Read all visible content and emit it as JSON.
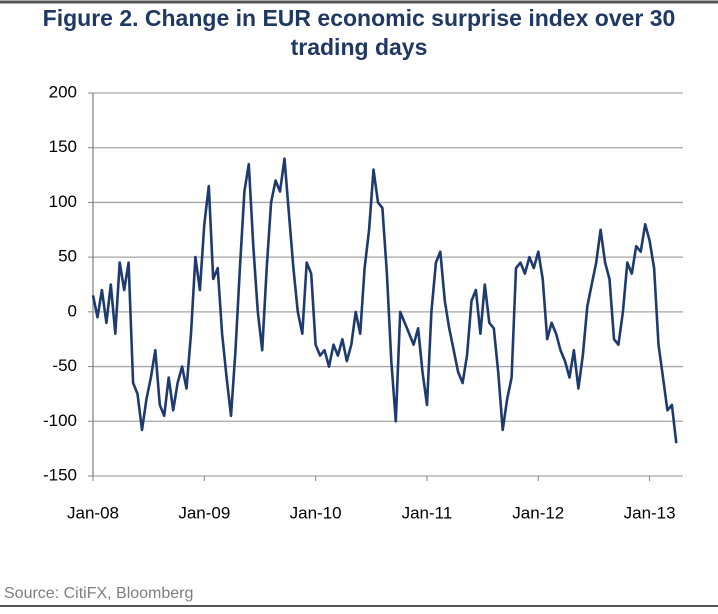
{
  "chart_data": {
    "type": "line",
    "title": "Figure 2. Change in EUR economic surprise index over 30 trading days",
    "source": "Source: CitiFX, Bloomberg",
    "x": [
      2008.0,
      2008.04,
      2008.08,
      2008.12,
      2008.16,
      2008.2,
      2008.24,
      2008.28,
      2008.32,
      2008.36,
      2008.4,
      2008.44,
      2008.48,
      2008.52,
      2008.56,
      2008.6,
      2008.64,
      2008.68,
      2008.72,
      2008.76,
      2008.8,
      2008.84,
      2008.88,
      2008.92,
      2008.96,
      2009.0,
      2009.04,
      2009.08,
      2009.12,
      2009.16,
      2009.2,
      2009.24,
      2009.28,
      2009.32,
      2009.36,
      2009.4,
      2009.44,
      2009.48,
      2009.52,
      2009.56,
      2009.6,
      2009.64,
      2009.68,
      2009.72,
      2009.76,
      2009.8,
      2009.84,
      2009.88,
      2009.92,
      2009.96,
      2010.0,
      2010.04,
      2010.08,
      2010.12,
      2010.16,
      2010.2,
      2010.24,
      2010.28,
      2010.32,
      2010.36,
      2010.4,
      2010.44,
      2010.48,
      2010.52,
      2010.56,
      2010.6,
      2010.64,
      2010.68,
      2010.72,
      2010.76,
      2010.8,
      2010.84,
      2010.88,
      2010.92,
      2010.96,
      2011.0,
      2011.04,
      2011.08,
      2011.12,
      2011.16,
      2011.2,
      2011.24,
      2011.28,
      2011.32,
      2011.36,
      2011.4,
      2011.44,
      2011.48,
      2011.52,
      2011.56,
      2011.6,
      2011.64,
      2011.68,
      2011.72,
      2011.76,
      2011.8,
      2011.84,
      2011.88,
      2011.92,
      2011.96,
      2012.0,
      2012.04,
      2012.08,
      2012.12,
      2012.16,
      2012.2,
      2012.24,
      2012.28,
      2012.32,
      2012.36,
      2012.4,
      2012.44,
      2012.48,
      2012.52,
      2012.56,
      2012.6,
      2012.64,
      2012.68,
      2012.72,
      2012.76,
      2012.8,
      2012.84,
      2012.88,
      2012.92,
      2012.96,
      2013.0,
      2013.04,
      2013.08,
      2013.12,
      2013.16,
      2013.2,
      2013.24
    ],
    "series": [
      {
        "color": "#1f3a6e",
        "values": [
          15,
          -5,
          20,
          -10,
          25,
          -20,
          45,
          20,
          45,
          -65,
          -75,
          -108,
          -80,
          -60,
          -35,
          -85,
          -95,
          -60,
          -90,
          -65,
          -50,
          -70,
          -20,
          50,
          20,
          80,
          115,
          30,
          40,
          -20,
          -60,
          -95,
          -35,
          40,
          110,
          135,
          60,
          0,
          -35,
          40,
          100,
          120,
          110,
          140,
          90,
          40,
          0,
          -20,
          45,
          35,
          -30,
          -40,
          -35,
          -50,
          -30,
          -40,
          -25,
          -45,
          -30,
          0,
          -20,
          40,
          75,
          130,
          100,
          95,
          35,
          -45,
          -100,
          0,
          -10,
          -20,
          -30,
          -15,
          -55,
          -85,
          0,
          45,
          55,
          10,
          -15,
          -35,
          -55,
          -65,
          -40,
          10,
          20,
          -20,
          25,
          -10,
          -15,
          -55,
          -108,
          -80,
          -60,
          40,
          45,
          35,
          50,
          40,
          55,
          30,
          -25,
          -10,
          -20,
          -35,
          -45,
          -60,
          -35,
          -70,
          -40,
          5,
          25,
          45,
          75,
          45,
          30,
          -25,
          -30,
          0,
          45,
          35,
          60,
          55,
          80,
          65,
          40,
          -30,
          -60,
          -90,
          -85,
          -120
        ]
      }
    ],
    "xlim": [
      2008,
      2013.3
    ],
    "xticks": [
      {
        "value": 2008,
        "label": "Jan-08"
      },
      {
        "value": 2009,
        "label": "Jan-09"
      },
      {
        "value": 2010,
        "label": "Jan-10"
      },
      {
        "value": 2011,
        "label": "Jan-11"
      },
      {
        "value": 2012,
        "label": "Jan-12"
      },
      {
        "value": 2013,
        "label": "Jan-13"
      }
    ],
    "ylim": [
      -150,
      200
    ],
    "yticks": [
      -150,
      -100,
      -50,
      0,
      50,
      100,
      150,
      200
    ],
    "grid": true
  }
}
